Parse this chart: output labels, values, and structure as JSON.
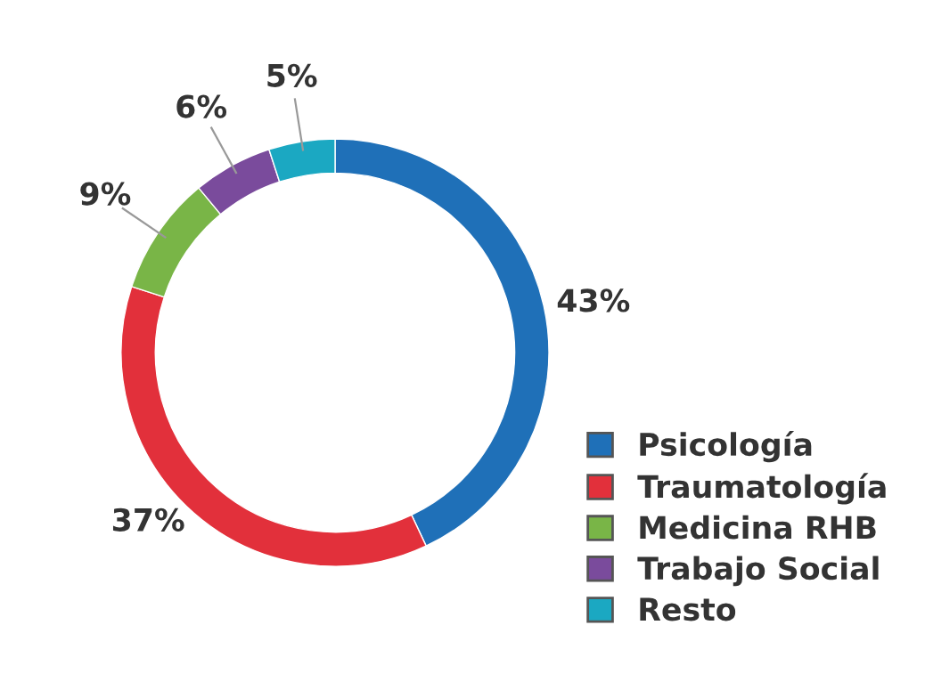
{
  "chart_data": {
    "type": "donut",
    "categories": [
      "Psicología",
      "Traumatología",
      "Medicina RHB",
      "Trabajo Social",
      "Resto"
    ],
    "values": [
      43,
      37,
      9,
      6,
      5
    ],
    "value_labels": [
      "43%",
      "37%",
      "9%",
      "6%",
      "5%"
    ],
    "colors": [
      "#1f70b8",
      "#e2303b",
      "#79b547",
      "#7a4b9c",
      "#1ba8c2"
    ],
    "legend": "bottom right"
  }
}
